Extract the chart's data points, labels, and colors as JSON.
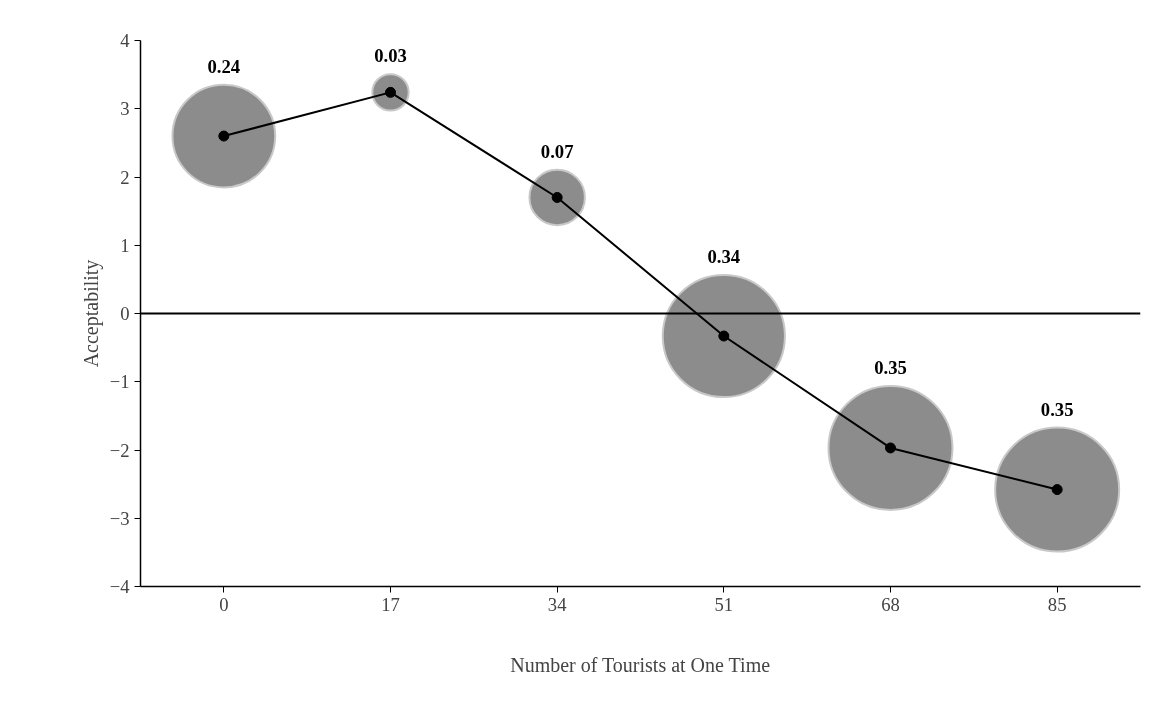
{
  "chart_data": {
    "type": "bubble",
    "xlabel": "Number of Tourists at One Time",
    "ylabel": "Acceptability",
    "x": [
      0,
      17,
      34,
      51,
      68,
      85
    ],
    "series": [
      {
        "color": "#8c8c8c",
        "values": [
          2.6,
          3.24,
          1.7,
          -0.33,
          -1.97,
          -2.58
        ],
        "sizes": [
          0.686,
          0.086,
          0.2,
          0.971,
          1,
          1
        ]
      },
      {
        "type": "line",
        "color": "#000000",
        "values": [
          2.6,
          3.24,
          1.7,
          -0.33,
          -1.97,
          -2.58
        ],
        "marker": "circle",
        "line_style": "solid"
      }
    ],
    "xlim": [
      -8.5,
      93.5
    ],
    "xticks": [
      0,
      17,
      34,
      51,
      68,
      85
    ],
    "ylim": [
      -4,
      4
    ],
    "yticks": [
      -4,
      -3,
      -2,
      -1,
      0,
      1,
      2,
      3,
      4
    ],
    "ref_lines": [
      {
        "axis": "y",
        "value": 0,
        "color": "#000000"
      }
    ],
    "annotations": [
      "0.24",
      "0.03",
      "0.07",
      "0.34",
      "0.35",
      "0.35"
    ],
    "grid": false
  }
}
